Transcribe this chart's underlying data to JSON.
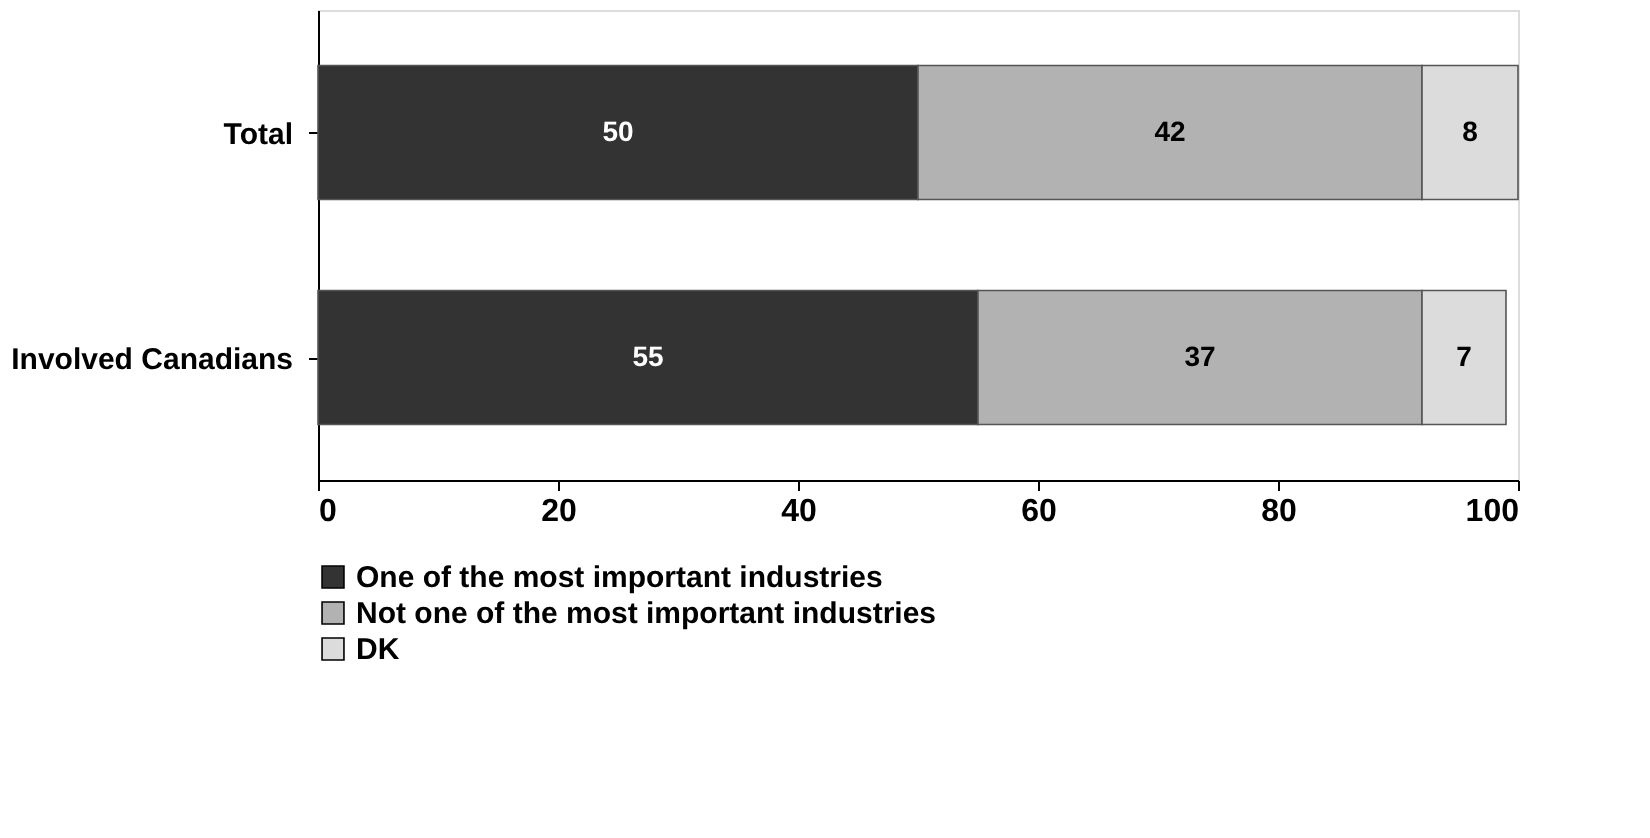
{
  "chart_data": {
    "type": "bar",
    "orientation": "horizontal",
    "stacked": true,
    "categories": [
      "Total",
      "Involved Canadians"
    ],
    "series": [
      {
        "name": "One of the most important industries",
        "color": "#333333",
        "values": [
          50,
          55
        ]
      },
      {
        "name": "Not one of the most important industries",
        "color": "#b2b2b2",
        "values": [
          42,
          37
        ]
      },
      {
        "name": "DK",
        "color": "#dcdcdc",
        "values": [
          8,
          7
        ]
      }
    ],
    "xlim": [
      0,
      100
    ],
    "xticks": [
      0,
      20,
      40,
      60,
      80,
      100
    ],
    "data_labels": true,
    "grid": false,
    "legend": "bottom"
  }
}
